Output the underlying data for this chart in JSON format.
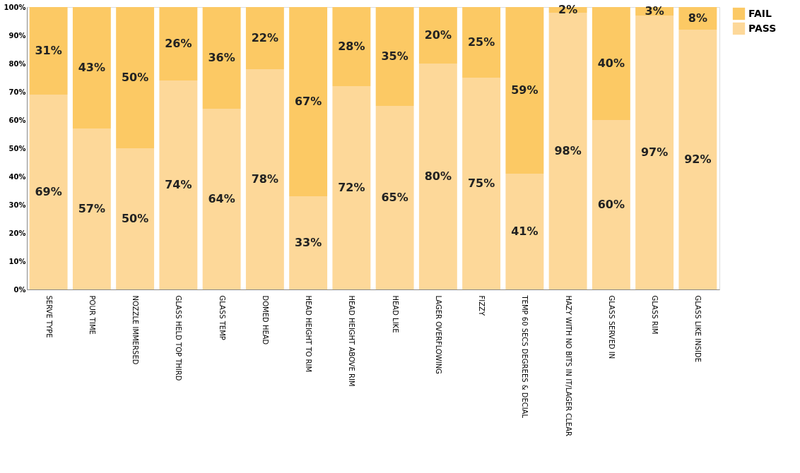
{
  "chart_data": {
    "type": "bar",
    "stacked": true,
    "categories": [
      "SERVE TYPE",
      "POUR TIME",
      "NOZZLE IMMERSED",
      "GLASS HELD TOP THIRD",
      "GLASS TEMP",
      "DOMED HEAD",
      "HEAD HEIGHT TO RIM",
      "HEAD HEIGHT ABOVE RIM",
      "HEAD LIKE",
      "LAGER OVERFLOWING",
      "FIZZY",
      "TEMP 60 SECS DEGREES & DECIAL",
      "HAZY WITH NO BITS IN IT/LAGER CLEAR",
      "GLASS SERVED IN",
      "GLASS RIM",
      "GLASS LIKE INSIDE"
    ],
    "series": [
      {
        "name": "PASS",
        "color": "#fdd899",
        "values": [
          69,
          57,
          50,
          74,
          64,
          78,
          33,
          72,
          65,
          80,
          75,
          41,
          98,
          60,
          97,
          92
        ],
        "value_labels": [
          "69%",
          "57%",
          "50%",
          "74%",
          "64%",
          "78%",
          "33%",
          "72%",
          "65%",
          "80%",
          "75%",
          "41%",
          "98%",
          "60%",
          "97%",
          "92%"
        ]
      },
      {
        "name": "FAIL",
        "color": "#fcc964",
        "values": [
          31,
          43,
          50,
          26,
          36,
          22,
          67,
          28,
          35,
          20,
          25,
          59,
          2,
          40,
          3,
          8
        ],
        "value_labels": [
          "31%",
          "43%",
          "50%",
          "26%",
          "36%",
          "22%",
          "67%",
          "28%",
          "35%",
          "20%",
          "25%",
          "59%",
          "2%",
          "40%",
          "3%",
          "8%"
        ]
      }
    ],
    "ylim": [
      0,
      100
    ],
    "yticks": [
      {
        "value": 0,
        "label": "0%"
      },
      {
        "value": 10,
        "label": "10%"
      },
      {
        "value": 20,
        "label": "20%"
      },
      {
        "value": 30,
        "label": "30%"
      },
      {
        "value": 40,
        "label": "40%"
      },
      {
        "value": 50,
        "label": "50%"
      },
      {
        "value": 60,
        "label": "60%"
      },
      {
        "value": 70,
        "label": "70%"
      },
      {
        "value": 80,
        "label": "80%"
      },
      {
        "value": 90,
        "label": "90%"
      },
      {
        "value": 100,
        "label": "100%"
      }
    ],
    "grid": false,
    "legend": "top right"
  }
}
